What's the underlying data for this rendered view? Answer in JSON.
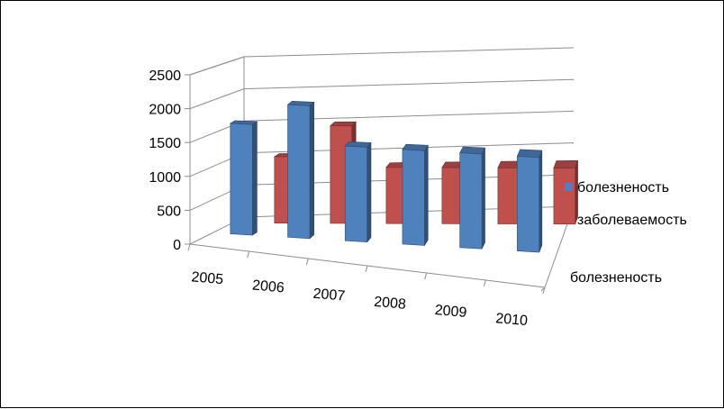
{
  "chart_data": {
    "type": "bar",
    "title": "",
    "categories": [
      "2005",
      "2006",
      "2007",
      "2008",
      "2009",
      "2010"
    ],
    "series": [
      {
        "name": "болезненость",
        "values": [
          1750,
          2100,
          1500,
          1500,
          1500,
          1500
        ],
        "color": "#4f81bd"
      },
      {
        "name": "заболеваемость",
        "values": [
          1030,
          1510,
          870,
          870,
          870,
          870
        ],
        "color": "#c0504d"
      }
    ],
    "depth_axis_label": "болезненость",
    "y_ticks": [
      "0",
      "500",
      "1000",
      "1500",
      "2000",
      "2500"
    ],
    "ylim": [
      0,
      2500
    ],
    "grid": true,
    "legend_position": "right"
  }
}
